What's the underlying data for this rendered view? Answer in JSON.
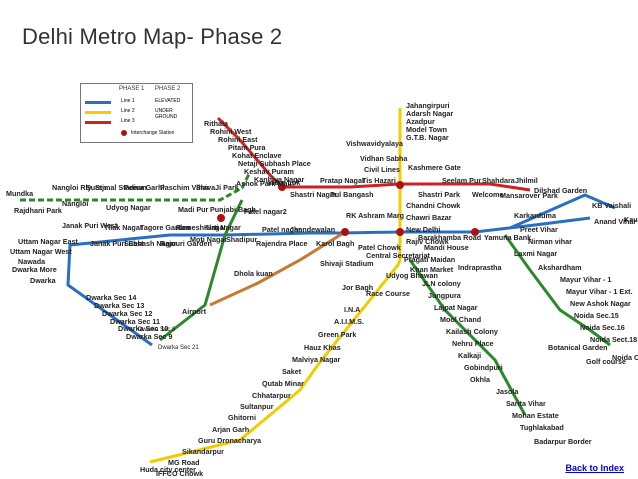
{
  "title": "Delhi Metro Map- Phase 2",
  "legend": {
    "phase1": "PHASE 1",
    "phase2": "PHASE 2",
    "line1": "Line 1",
    "line2": "Line 2",
    "line3": "Line 3",
    "elevated": "ELEVATED",
    "under_ground": "UNDER GROUND",
    "interchange": "Interchange Station"
  },
  "colors": {
    "red": "#cc2222",
    "yellow": "#f2cc00",
    "blue": "#2a6fbf",
    "green": "#2a8a2a",
    "orange": "#c87830",
    "station_dot": "#ffffff",
    "interchange": "#b01010"
  },
  "stations": [
    {
      "id": "rithala",
      "label": "Rithala"
    },
    {
      "id": "rohini_west",
      "label": "Rohini West"
    },
    {
      "id": "rohini_east",
      "label": "Rohini East"
    },
    {
      "id": "pitam_pura",
      "label": "Pitam Pura"
    },
    {
      "id": "kohat",
      "label": "Kohat Enclave"
    },
    {
      "id": "netaji",
      "label": "Netaji Subhash Place"
    },
    {
      "id": "keshav",
      "label": "Keshav Puram"
    },
    {
      "id": "kanhiya",
      "label": "Kanhiya Nagar"
    },
    {
      "id": "inder_lok",
      "label": "Inder Lok"
    },
    {
      "id": "ashok_park",
      "label": "Ashok Park Main"
    },
    {
      "id": "shastri_nagar",
      "label": "Shastri Nagar"
    },
    {
      "id": "pratap_nagar",
      "label": "Pratap Nagar"
    },
    {
      "id": "pul_bangash",
      "label": "Pul Bangash"
    },
    {
      "id": "tis_hazari",
      "label": "Tis Hazari"
    },
    {
      "id": "kashmere",
      "label": "Kashmere Gate"
    },
    {
      "id": "shastri_park",
      "label": "Shastri Park"
    },
    {
      "id": "seelam_pur",
      "label": "Seelam Pur"
    },
    {
      "id": "welcome",
      "label": "Welcome"
    },
    {
      "id": "shahdara",
      "label": "Shahdara"
    },
    {
      "id": "mansarover",
      "label": "Mansarover Park"
    },
    {
      "id": "jhilmil",
      "label": "Jhilmil"
    },
    {
      "id": "dilshad",
      "label": "Dilshad Garden"
    },
    {
      "id": "jahangirpuri",
      "label": "Jahangirpuri"
    },
    {
      "id": "adarsh",
      "label": "Adarsh Nagar"
    },
    {
      "id": "azadpur",
      "label": "Azadpur"
    },
    {
      "id": "model_town",
      "label": "Model Town"
    },
    {
      "id": "gtb",
      "label": "G.T.B. Nagar"
    },
    {
      "id": "vishwa",
      "label": "Vishwavidyalaya"
    },
    {
      "id": "vidhan",
      "label": "Vidhan Sabha"
    },
    {
      "id": "civil",
      "label": "Civil Lines"
    },
    {
      "id": "chandni",
      "label": "Chandni Chowk"
    },
    {
      "id": "chawri",
      "label": "Chawri Bazar"
    },
    {
      "id": "new_delhi",
      "label": "New Delhi"
    },
    {
      "id": "rajiv",
      "label": "Rajiv Chowk"
    },
    {
      "id": "patel_chowk",
      "label": "Patel Chowk"
    },
    {
      "id": "central_sec",
      "label": "Central Secretariat"
    },
    {
      "id": "udyog",
      "label": "Udyog Bhawan"
    },
    {
      "id": "race",
      "label": "Race Course"
    },
    {
      "id": "jor_bagh",
      "label": "Jor Bagh"
    },
    {
      "id": "ina",
      "label": "I.N.A"
    },
    {
      "id": "aiims",
      "label": "A.I.I.M.S."
    },
    {
      "id": "green_park",
      "label": "Green Park"
    },
    {
      "id": "hauz_khas",
      "label": "Hauz Khas"
    },
    {
      "id": "malviya",
      "label": "Malviya Nagar"
    },
    {
      "id": "saket",
      "label": "Saket"
    },
    {
      "id": "qutab",
      "label": "Qutab Minar"
    },
    {
      "id": "chhatarpur",
      "label": "Chhatarpur"
    },
    {
      "id": "sultanpur",
      "label": "Sultanpur"
    },
    {
      "id": "ghitorni",
      "label": "Ghitorni"
    },
    {
      "id": "arjan",
      "label": "Arjan Garh"
    },
    {
      "id": "guru",
      "label": "Guru Dronacharya"
    },
    {
      "id": "sikandarpur",
      "label": "Sikandarpur"
    },
    {
      "id": "mg_road",
      "label": "MG Road"
    },
    {
      "id": "iffco",
      "label": "IFFCO Chowk"
    },
    {
      "id": "huda",
      "label": "Huda city center"
    },
    {
      "id": "mundka",
      "label": "Mundka"
    },
    {
      "id": "nangloi_rly",
      "label": "Nangloi Rly. Stn."
    },
    {
      "id": "nangloi",
      "label": "Nangloi"
    },
    {
      "id": "rajdhani",
      "label": "Rajdhani Park"
    },
    {
      "id": "surajmal",
      "label": "Surajmal Stadium"
    },
    {
      "id": "udyog_nagar",
      "label": "Udyog Nagar"
    },
    {
      "id": "peera",
      "label": "Peera Garhi"
    },
    {
      "id": "paschim",
      "label": "Paschim Vihar"
    },
    {
      "id": "shivaji_park",
      "label": "ShivaJi Park"
    },
    {
      "id": "madi",
      "label": "Madi Pur"
    },
    {
      "id": "punjabi",
      "label": "Punjabi Bagh"
    },
    {
      "id": "janak_west",
      "label": "Janak Puri West"
    },
    {
      "id": "janak_east",
      "label": "Janak Puri East"
    },
    {
      "id": "tilak",
      "label": "Tilak Nagar"
    },
    {
      "id": "subhash",
      "label": "Subhash Nagar"
    },
    {
      "id": "tagore",
      "label": "Tagore Garden"
    },
    {
      "id": "rajouri",
      "label": "Rajouri Garden"
    },
    {
      "id": "ramesh",
      "label": "Ramesh Nagar"
    },
    {
      "id": "moti",
      "label": "Moti Nagar"
    },
    {
      "id": "kirti",
      "label": "Kirti Nagar"
    },
    {
      "id": "shadipur",
      "label": "Shadipur"
    },
    {
      "id": "patel_nagar2",
      "label": "Patel nagar2"
    },
    {
      "id": "patel_nagar",
      "label": "Patel nagar"
    },
    {
      "id": "rajendra",
      "label": "Rajendra Place"
    },
    {
      "id": "jhandewalan",
      "label": "Jhandewalan"
    },
    {
      "id": "karol",
      "label": "Karol Bagh"
    },
    {
      "id": "rk_ashram",
      "label": "RK Ashram Marg"
    },
    {
      "id": "shivaji_stadium",
      "label": "Shivaji Stadium"
    },
    {
      "id": "dhola",
      "label": "Dhola kuan"
    },
    {
      "id": "airport",
      "label": "Airport"
    },
    {
      "id": "uttam_east",
      "label": "Uttam Nagar East"
    },
    {
      "id": "uttam_west",
      "label": "Uttam Nagar West"
    },
    {
      "id": "nawada",
      "label": "Nawada"
    },
    {
      "id": "dwarka_mor",
      "label": "Dwarka More"
    },
    {
      "id": "dwarka",
      "label": "Dwarka"
    },
    {
      "id": "dw14",
      "label": "Dwarka Sec 14"
    },
    {
      "id": "dw13",
      "label": "Dwarka Sec 13"
    },
    {
      "id": "dw12",
      "label": "Dwarka Sec 12"
    },
    {
      "id": "dw11",
      "label": "Dwarka Sec 11"
    },
    {
      "id": "dw10",
      "label": "Dwarka Sec 10"
    },
    {
      "id": "dw9",
      "label": "Dwarka Sec 9"
    },
    {
      "id": "dw8",
      "label": "Dwarka Sec 8"
    },
    {
      "id": "dw21",
      "label": "Dwarka Sec 21"
    },
    {
      "id": "barakhamba",
      "label": "Barakhamba Road"
    },
    {
      "id": "mandi",
      "label": "Mandi House"
    },
    {
      "id": "pragati",
      "label": "Pragati Maidan"
    },
    {
      "id": "indraprastha",
      "label": "Indraprastha"
    },
    {
      "id": "yamuna",
      "label": "Yamuna Bank"
    },
    {
      "id": "khan",
      "label": "Khan Market"
    },
    {
      "id": "jln",
      "label": "JLN colony"
    },
    {
      "id": "jungpura",
      "label": "Jungpura"
    },
    {
      "id": "lajpat",
      "label": "Lajpat Nagar"
    },
    {
      "id": "moolchand",
      "label": "Mool Chand"
    },
    {
      "id": "kailash",
      "label": "Kailash Colony"
    },
    {
      "id": "nehru",
      "label": "Nehru Place"
    },
    {
      "id": "kalkaji",
      "label": "Kalkaji"
    },
    {
      "id": "gobindpuri",
      "label": "Gobindpuri"
    },
    {
      "id": "okhla",
      "label": "Okhla"
    },
    {
      "id": "jasola",
      "label": "Jasola"
    },
    {
      "id": "sarita",
      "label": "Sarita Vihar"
    },
    {
      "id": "mohan",
      "label": "Mohan Estate"
    },
    {
      "id": "tughlakabad",
      "label": "Tughlakabad"
    },
    {
      "id": "badarpur",
      "label": "Badarpur Border"
    },
    {
      "id": "karkarduma",
      "label": "Karkarduma"
    },
    {
      "id": "preet",
      "label": "Preet Vihar"
    },
    {
      "id": "nirman",
      "label": "Nirman vihar"
    },
    {
      "id": "laxmi",
      "label": "Laxmi Nagar"
    },
    {
      "id": "kb_vaishali",
      "label": "KB Vaishali"
    },
    {
      "id": "anand",
      "label": "Anand Vihar ISBT"
    },
    {
      "id": "kaushambi",
      "label": "Kaushambi"
    },
    {
      "id": "akshardham",
      "label": "Akshardham"
    },
    {
      "id": "mayur1",
      "label": "Mayur Vihar - 1"
    },
    {
      "id": "mayur1e",
      "label": "Mayur Vihar - 1 Ext."
    },
    {
      "id": "new_ashok",
      "label": "New Ashok Nagar"
    },
    {
      "id": "noida15",
      "label": "Noida Sec.15"
    },
    {
      "id": "noida16",
      "label": "Noida Sec.16"
    },
    {
      "id": "noida18",
      "label": "Noida Sect.18"
    },
    {
      "id": "botanical",
      "label": "Botanical Garden"
    },
    {
      "id": "golf",
      "label": "Golf course"
    },
    {
      "id": "noida_city",
      "label": "Noida City Center"
    }
  ],
  "back_link": "Back to Index"
}
